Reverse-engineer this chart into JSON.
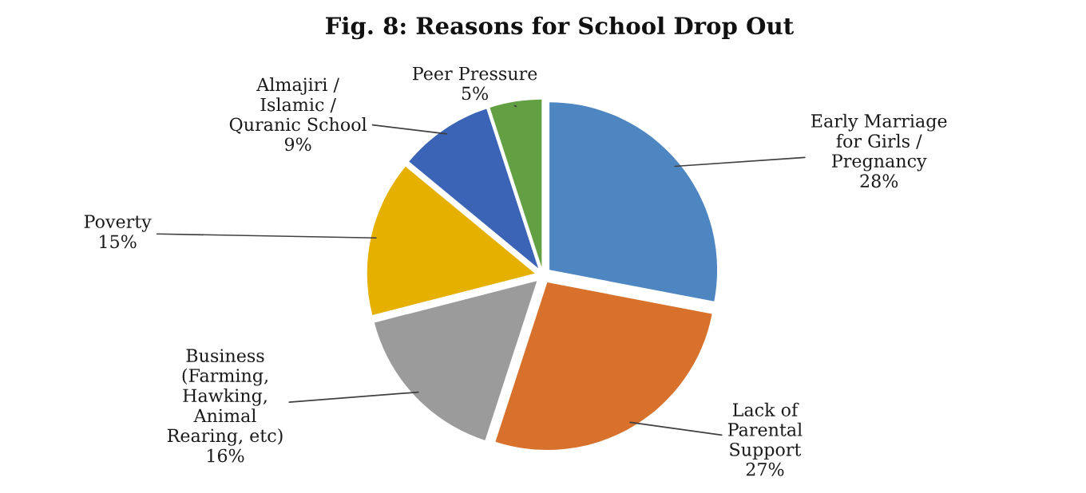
{
  "chart_data": {
    "type": "pie",
    "title": "Fig. 8: Reasons for School Drop Out",
    "categories": [
      "Early Marriage\nfor Girls /\nPregnancy",
      "Lack of\nParental\nSupport",
      "Business\n(Farming,\nHawking,\nAnimal\nRearing, etc)",
      "Poverty",
      "Almajiri /\nIslamic /\nQuranic School",
      "Peer Pressure"
    ],
    "values": [
      28,
      27,
      16,
      15,
      9,
      5
    ],
    "colors": [
      "#4e86c1",
      "#d8712c",
      "#9b9b9b",
      "#e6b000",
      "#3b63b6",
      "#62a043"
    ],
    "value_labels": [
      "28%",
      "27%",
      "16%",
      "15%",
      "9%",
      "5%"
    ],
    "legend": false
  }
}
